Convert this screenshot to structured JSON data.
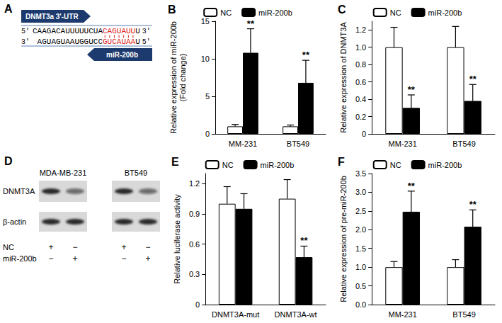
{
  "panel_a": {
    "label": "A",
    "utr_label": "DNMT3a 3'-UTR",
    "mirna_label": "miR-200b",
    "top": {
      "left_end": "5'",
      "right_end": "3'",
      "segments": [
        {
          "text": "CAAGACAUUUUUCUA",
          "paired": false
        },
        {
          "text": "CAGUAUU",
          "paired": true
        },
        {
          "text": "U",
          "paired": false
        }
      ]
    },
    "bottom": {
      "left_end": "3'",
      "right_end": "5'",
      "segments": [
        {
          "text": "AGUAGUAAUGGUCC",
          "paired": false
        },
        {
          "text": "GUCAUAA",
          "paired": true
        },
        {
          "text": "U",
          "paired": false
        }
      ]
    }
  },
  "panel_d": {
    "label": "D",
    "cell_lines": [
      "MDA-MB-231",
      "BT549"
    ],
    "rows": [
      {
        "name": "DNMT3A",
        "band_intensity": [
          0.9,
          0.55,
          0.9,
          0.55
        ]
      },
      {
        "name": "β-actin",
        "band_intensity": [
          0.9,
          0.9,
          0.9,
          0.9
        ]
      }
    ],
    "conditions": [
      {
        "name": "NC",
        "signs": [
          "+",
          "−",
          "+",
          "−"
        ]
      },
      {
        "name": "miR-200b",
        "signs": [
          "−",
          "+",
          "−",
          "+"
        ]
      }
    ]
  },
  "chart_data": [
    {
      "type": "bar",
      "title": "B",
      "ylabel": "Relative expression of miR-200b\n(Fold change)",
      "categories": [
        "MM-231",
        "BT549"
      ],
      "series": [
        {
          "name": "NC",
          "color": "#ffffff",
          "values": [
            1.0,
            1.0
          ],
          "error": [
            0.25,
            0.18
          ],
          "annotations": [
            null,
            null
          ]
        },
        {
          "name": "miR-200b",
          "color": "#000000",
          "values": [
            10.8,
            6.8
          ],
          "error": [
            3.2,
            3.0
          ],
          "annotations": [
            "**",
            "**"
          ]
        }
      ],
      "ylim": [
        0,
        15
      ],
      "yticks": [
        0,
        5,
        10,
        15
      ],
      "grid": false,
      "legend": "top"
    },
    {
      "type": "bar",
      "title": "C",
      "ylabel": "Relative expression of DNMT3A",
      "categories": [
        "MM-231",
        "BT549"
      ],
      "series": [
        {
          "name": "NC",
          "color": "#ffffff",
          "values": [
            1.0,
            1.0
          ],
          "error": [
            0.23,
            0.24
          ],
          "annotations": [
            null,
            null
          ]
        },
        {
          "name": "miR-200b",
          "color": "#000000",
          "values": [
            0.3,
            0.38
          ],
          "error": [
            0.15,
            0.19
          ],
          "annotations": [
            "**",
            "**"
          ]
        }
      ],
      "ylim": [
        0,
        1.3
      ],
      "yticks": [
        0,
        0.2,
        0.4,
        0.6,
        0.8,
        {
          "value": 1,
          "label": "1.0"
        },
        1.2
      ],
      "grid": false,
      "legend": "top"
    },
    {
      "type": "bar",
      "title": "E",
      "ylabel": "Relative luciferase activity",
      "categories": [
        "DNMT3A-mut",
        "DNMT3A-wt"
      ],
      "series": [
        {
          "name": "NC",
          "color": "#ffffff",
          "values": [
            1.0,
            1.05
          ],
          "error": [
            0.17,
            0.19
          ],
          "annotations": [
            null,
            null
          ]
        },
        {
          "name": "miR-200b",
          "color": "#000000",
          "values": [
            0.95,
            0.47
          ],
          "error": [
            0.15,
            0.11
          ],
          "annotations": [
            null,
            "**"
          ]
        }
      ],
      "ylim": [
        0,
        1.3
      ],
      "yticks": [
        0,
        0.3,
        0.6,
        0.9,
        1.2
      ],
      "grid": false,
      "legend": "top"
    },
    {
      "type": "bar",
      "title": "F",
      "ylabel": "Relative expression of pre-miR-200b",
      "categories": [
        "MM-231",
        "BT549"
      ],
      "series": [
        {
          "name": "NC",
          "color": "#ffffff",
          "values": [
            1.0,
            1.0
          ],
          "error": [
            0.15,
            0.2
          ],
          "annotations": [
            null,
            null
          ]
        },
        {
          "name": "miR-200b",
          "color": "#000000",
          "values": [
            2.48,
            2.08
          ],
          "error": [
            0.55,
            0.45
          ],
          "annotations": [
            "**",
            "**"
          ]
        }
      ],
      "ylim": [
        0,
        3.5
      ],
      "yticks": [
        {
          "value": 0,
          "label": "0.0"
        },
        0.5,
        {
          "value": 1,
          "label": "1.0"
        },
        1.5,
        {
          "value": 2,
          "label": "2.0"
        },
        2.5,
        {
          "value": 3,
          "label": "3.0"
        },
        3.5
      ],
      "grid": false,
      "legend": "top"
    }
  ]
}
